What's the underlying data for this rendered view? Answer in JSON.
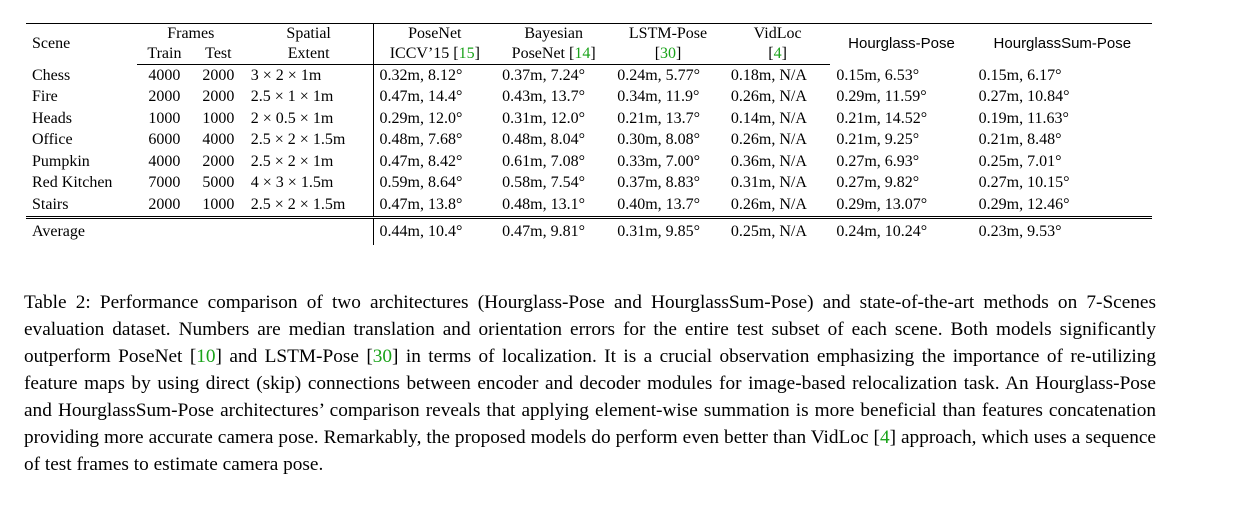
{
  "table": {
    "header": {
      "scene": "Scene",
      "frames": "Frames",
      "train": "Train",
      "test": "Test",
      "spatial_1": "Spatial",
      "spatial_2": "Extent",
      "posenet_1": "PoseNet",
      "posenet_2_pre": "ICCV’15 [",
      "posenet_ref": "15",
      "posenet_2_post": "]",
      "bayes_1": "Bayesian",
      "bayes_2_pre": "PoseNet [",
      "bayes_ref": "14",
      "bayes_2_post": "]",
      "lstm_1": "LSTM-Pose",
      "lstm_pre": "[",
      "lstm_ref": "30",
      "lstm_post": "]",
      "vidloc_1": "VidLoc",
      "vidloc_pre": "[",
      "vidloc_ref": "4",
      "vidloc_post": "]",
      "hourglass": "Hourglass-Pose",
      "hourglasssum": "HourglassSum-Pose"
    },
    "rows": [
      {
        "scene": "Chess",
        "train": "4000",
        "test": "2000",
        "extent": "3 × 2 × 1m",
        "posenet": "0.32m, 8.12°",
        "bayes": "0.37m, 7.24°",
        "lstm": "0.24m, 5.77°",
        "vidloc": "0.18m, N/A",
        "hourglass": "0.15m, 6.53°",
        "hourglasssum": "0.15m, 6.17°"
      },
      {
        "scene": "Fire",
        "train": "2000",
        "test": "2000",
        "extent": "2.5 × 1 × 1m",
        "posenet": "0.47m, 14.4°",
        "bayes": "0.43m, 13.7°",
        "lstm": "0.34m, 11.9°",
        "vidloc": "0.26m, N/A",
        "hourglass": "0.29m, 11.59°",
        "hourglasssum": "0.27m, 10.84°"
      },
      {
        "scene": "Heads",
        "train": "1000",
        "test": "1000",
        "extent": "2 × 0.5 × 1m",
        "posenet": "0.29m, 12.0°",
        "bayes": "0.31m, 12.0°",
        "lstm": "0.21m, 13.7°",
        "vidloc": "0.14m, N/A",
        "hourglass": "0.21m, 14.52°",
        "hourglasssum": "0.19m, 11.63°"
      },
      {
        "scene": "Office",
        "train": "6000",
        "test": "4000",
        "extent": "2.5 × 2 × 1.5m",
        "posenet": "0.48m, 7.68°",
        "bayes": "0.48m, 8.04°",
        "lstm": "0.30m, 8.08°",
        "vidloc": "0.26m, N/A",
        "hourglass": "0.21m, 9.25°",
        "hourglasssum": "0.21m, 8.48°"
      },
      {
        "scene": "Pumpkin",
        "train": "4000",
        "test": "2000",
        "extent": "2.5 × 2 × 1m",
        "posenet": "0.47m, 8.42°",
        "bayes": "0.61m, 7.08°",
        "lstm": "0.33m, 7.00°",
        "vidloc": "0.36m, N/A",
        "hourglass": "0.27m, 6.93°",
        "hourglasssum": "0.25m, 7.01°"
      },
      {
        "scene": "Red Kitchen",
        "train": "7000",
        "test": "5000",
        "extent": "4 × 3 × 1.5m",
        "posenet": "0.59m, 8.64°",
        "bayes": "0.58m, 7.54°",
        "lstm": "0.37m, 8.83°",
        "vidloc": "0.31m, N/A",
        "hourglass": "0.27m, 9.82°",
        "hourglasssum": "0.27m, 10.15°"
      },
      {
        "scene": "Stairs",
        "train": "2000",
        "test": "1000",
        "extent": "2.5 × 2 × 1.5m",
        "posenet": "0.47m, 13.8°",
        "bayes": "0.48m, 13.1°",
        "lstm": "0.40m, 13.7°",
        "vidloc": "0.26m, N/A",
        "hourglass": "0.29m, 13.07°",
        "hourglasssum": "0.29m, 12.46°"
      }
    ],
    "average": {
      "label": "Average",
      "posenet": "0.44m, 10.4°",
      "bayes": "0.47m, 9.81°",
      "lstm": "0.31m, 9.85°",
      "vidloc": "0.25m, N/A",
      "hourglass": "0.24m, 10.24°",
      "hourglasssum": "0.23m, 9.53°"
    }
  },
  "caption": {
    "p1": "Table 2: Performance comparison of two architectures (Hourglass-Pose and HourglassSum-Pose) and state-of-the-art methods on 7-Scenes evaluation dataset. Numbers are median translation and orientation errors for the entire test subset of each scene. Both models significantly outperform PoseNet [",
    "ref1": "10",
    "p2": "] and LSTM-Pose [",
    "ref2": "30",
    "p3": "] in terms of localization. It is a crucial observation emphasizing the importance of re-utilizing feature maps by using direct (skip) connections between encoder and decoder modules for image-based relocalization task. An Hourglass-Pose and HourglassSum-Pose architectures’ comparison reveals that applying element-wise summation is more beneficial than features concatenation providing more accurate camera pose. Remarkably, the proposed models do perform even better than VidLoc [",
    "ref3": "4",
    "p4": "] approach, which uses a sequence of test frames to estimate camera pose."
  },
  "colors": {
    "citation_link": "#1aa31a"
  }
}
